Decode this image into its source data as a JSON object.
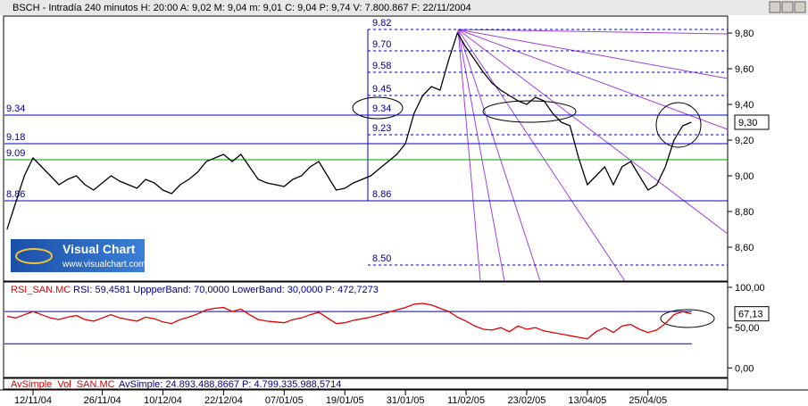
{
  "window": {
    "title": "BSCH - Intradía 240 minutos H: 20:00 A: 9,02 M: 9,04 m: 9,01 C: 9,04 P: 9,74 V: 7.800.867 F: 22/11/2004"
  },
  "logo": {
    "name": "Visual Chart",
    "url": "www.visualchart.com"
  },
  "chart_data": [
    {
      "type": "line",
      "color": "#000000",
      "values": [
        8.7,
        8.85,
        9.0,
        9.1,
        9.05,
        9.0,
        8.95,
        8.98,
        9.0,
        8.95,
        8.92,
        8.96,
        9.0,
        8.97,
        8.95,
        8.93,
        8.98,
        8.96,
        8.92,
        8.9,
        8.95,
        8.98,
        9.02,
        9.08,
        9.1,
        9.12,
        9.08,
        9.12,
        9.05,
        8.98,
        8.96,
        8.95,
        8.94,
        8.98,
        9.0,
        9.05,
        9.08,
        9.0,
        8.92,
        8.93,
        8.96,
        8.98,
        9.0,
        9.04,
        9.08,
        9.12,
        9.18,
        9.35,
        9.45,
        9.5,
        9.48,
        9.65,
        9.8,
        9.72,
        9.65,
        9.58,
        9.52,
        9.48,
        9.45,
        9.42,
        9.4,
        9.44,
        9.42,
        9.35,
        9.3,
        9.28,
        9.1,
        8.95,
        9.0,
        9.05,
        8.95,
        9.05,
        9.08,
        9.0,
        8.92,
        8.95,
        9.05,
        9.2,
        9.28,
        9.3
      ],
      "xlim": [
        -0.3,
        83.2
      ],
      "xticks": [
        {
          "value": 3,
          "label": "12/11/04"
        },
        {
          "value": 11,
          "label": "26/11/04"
        },
        {
          "value": 18,
          "label": "10/12/04"
        },
        {
          "value": 25,
          "label": "22/12/04"
        },
        {
          "value": 32,
          "label": "07/01/05"
        },
        {
          "value": 39,
          "label": "19/01/05"
        },
        {
          "value": 46,
          "label": "31/01/05"
        },
        {
          "value": 53,
          "label": "11/02/05"
        },
        {
          "value": 60,
          "label": "23/02/05"
        },
        {
          "value": 67,
          "label": "13/04/05"
        },
        {
          "value": 74,
          "label": "25/04/05"
        }
      ],
      "ylim": [
        8.41,
        9.895
      ],
      "yticks": [
        {
          "value": 8.6,
          "label": "8,60"
        },
        {
          "value": 8.8,
          "label": "8,80"
        },
        {
          "value": 9.0,
          "label": "9,00"
        },
        {
          "value": 9.2,
          "label": "9,20"
        },
        {
          "value": 9.4,
          "label": "9,40"
        },
        {
          "value": 9.6,
          "label": "9,60"
        },
        {
          "value": 9.8,
          "label": "9,80"
        }
      ],
      "levels": [
        9.34,
        9.18,
        9.09,
        8.86
      ],
      "level_colors": [
        "#0000c0",
        "#0000c0",
        "#00a000",
        "#0000c0"
      ],
      "fib_levels": [
        9.82,
        {
          "value": 9.7,
          "label": "9.70"
        },
        9.58,
        9.45,
        9.34,
        9.23,
        8.86,
        {
          "value": 8.5,
          "label": "8.50"
        }
      ],
      "last_value": {
        "value": 9.3,
        "label": "9,30"
      }
    },
    {
      "type": "line",
      "name": "RSI_SAN.MC",
      "header": "RSI: 59,4581  UppperBand: 70,0000  LowerBand: 30,0000  P: 472,7273",
      "color": "#e00000",
      "values": [
        64,
        62,
        66,
        70,
        66,
        62,
        60,
        63,
        65,
        60,
        58,
        62,
        66,
        62,
        60,
        58,
        63,
        61,
        57,
        55,
        60,
        63,
        67,
        72,
        74,
        75,
        70,
        73,
        66,
        60,
        58,
        57,
        56,
        60,
        62,
        66,
        69,
        62,
        55,
        56,
        59,
        61,
        63,
        66,
        69,
        72,
        75,
        79,
        80,
        78,
        74,
        70,
        63,
        58,
        52,
        48,
        47,
        50,
        45,
        52,
        48,
        50,
        46,
        44,
        42,
        40,
        38,
        36,
        45,
        50,
        44,
        52,
        54,
        48,
        44,
        47,
        55,
        66,
        70,
        67
      ],
      "ylim": [
        -11.8,
        106.6
      ],
      "yticks": [
        {
          "value": 0,
          "label": "0,00"
        },
        {
          "value": 50,
          "label": "50,00"
        },
        {
          "value": 100,
          "label": "100,00"
        }
      ],
      "bands": [
        70,
        30
      ],
      "last_value": {
        "value": 67.13,
        "label": "67,13"
      }
    },
    {
      "type": "header",
      "name": "AvSimple_Vol_SAN.MC",
      "header": "AvSimple: 24.893.488,8667  P: 4.799.335.988,5714"
    }
  ]
}
